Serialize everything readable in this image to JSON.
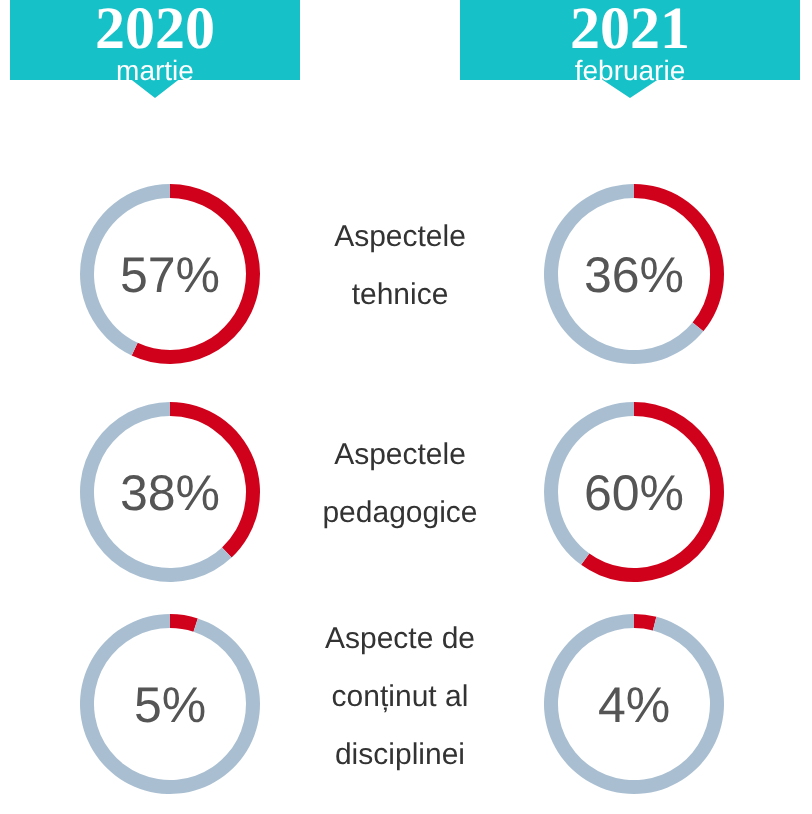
{
  "chart_data": [
    {
      "type": "donut",
      "title": "2020",
      "subtitle": "martie",
      "categories": [
        null,
        null
      ],
      "values": [
        57,
        43
      ],
      "colors": [
        "#d0021b",
        "#a9bfd1"
      ],
      "annotations": [
        "57%"
      ]
    },
    {
      "type": "other",
      "annotations": [
        "Aspectele tehnice"
      ]
    },
    {
      "type": "donut",
      "title": "2021",
      "subtitle": "februarie",
      "categories": [
        null,
        null
      ],
      "values": [
        36,
        64
      ],
      "colors": [
        "#d0021b",
        "#a9bfd1"
      ],
      "annotations": [
        "36%"
      ]
    },
    {
      "type": "donut",
      "categories": [
        null,
        null
      ],
      "values": [
        38,
        62
      ],
      "colors": [
        "#d0021b",
        "#a9bfd1"
      ],
      "annotations": [
        "38%"
      ]
    },
    {
      "type": "other",
      "annotations": [
        "Aspectele pedagogice"
      ]
    },
    {
      "type": "donut",
      "categories": [
        null,
        null
      ],
      "values": [
        60,
        40
      ],
      "colors": [
        "#d0021b",
        "#a9bfd1"
      ],
      "annotations": [
        "60%"
      ]
    },
    {
      "type": "donut",
      "categories": [
        null,
        null
      ],
      "values": [
        5,
        95
      ],
      "colors": [
        "#d0021b",
        "#a9bfd1"
      ],
      "annotations": [
        "5%"
      ]
    },
    {
      "type": "other",
      "annotations": [
        "Aspecte de conținut al disciplinei"
      ]
    },
    {
      "type": "donut",
      "categories": [
        null,
        null
      ],
      "values": [
        4,
        96
      ],
      "colors": [
        "#d0021b",
        "#a9bfd1"
      ],
      "annotations": [
        "4%"
      ]
    }
  ]
}
